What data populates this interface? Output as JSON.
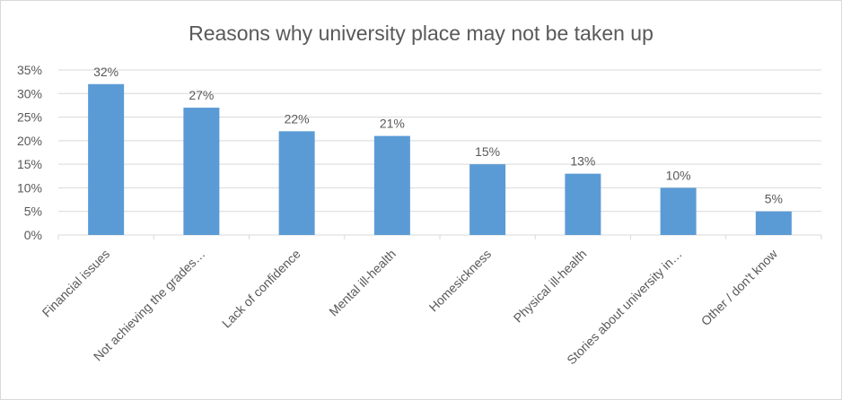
{
  "chart_data": {
    "type": "bar",
    "title": "Reasons why university place may not be taken up",
    "categories": [
      "Financial issues",
      "Not achieving the grades…",
      "Lack of confidence",
      "Mental ill-health",
      "Homesickness",
      "Physical ill-health",
      "Stories about university in…",
      "Other / don't know"
    ],
    "values": [
      32,
      27,
      22,
      21,
      15,
      13,
      10,
      5
    ],
    "value_labels": [
      "32%",
      "27%",
      "22%",
      "21%",
      "15%",
      "13%",
      "10%",
      "5%"
    ],
    "color": "#5b9bd5",
    "ylim": [
      0,
      35
    ],
    "yticks": [
      {
        "value": 0,
        "label": "0%"
      },
      {
        "value": 5,
        "label": "5%"
      },
      {
        "value": 10,
        "label": "10%"
      },
      {
        "value": 15,
        "label": "15%"
      },
      {
        "value": 20,
        "label": "20%"
      },
      {
        "value": 25,
        "label": "25%"
      },
      {
        "value": 30,
        "label": "30%"
      },
      {
        "value": 35,
        "label": "35%"
      }
    ],
    "grid": true
  }
}
